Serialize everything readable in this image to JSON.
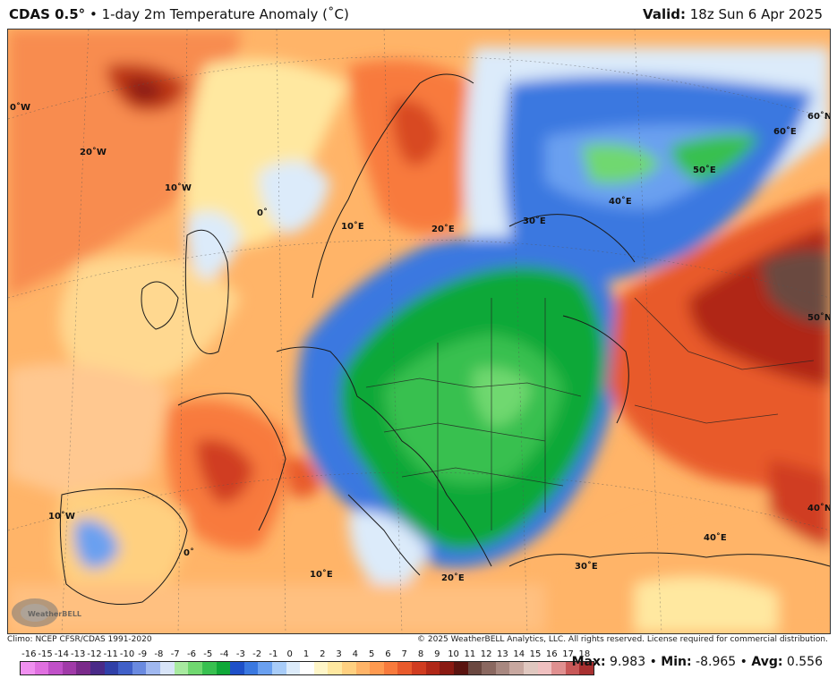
{
  "header": {
    "model": "CDAS 0.5°",
    "description": "• 1-day 2m Temperature Anomaly (˚C)",
    "valid_label": "Valid:",
    "valid_value": "18z Sun 6 Apr 2025"
  },
  "map": {
    "grid_labels": [
      "0˚W",
      "20˚W",
      "10˚W",
      "0˚",
      "10˚E",
      "20˚E",
      "30˚E",
      "40˚E",
      "50˚E",
      "60˚E",
      "60˚N",
      "50˚N",
      "40˚N",
      "10˚W",
      "0˚",
      "10˚E",
      "20˚E",
      "30˚E",
      "40˚E"
    ],
    "logo_text": "WeatherBELL"
  },
  "footer": {
    "climo": "Climo: NCEP CFSR/CDAS 1991-2020",
    "copyright": "© 2025 WeatherBELL Analytics, LLC. All rights reserved. License required for commercial distribution."
  },
  "colorbar": {
    "labels": [
      "-16",
      "-15",
      "-14",
      "-13",
      "-12",
      "-11",
      "-10",
      "-9",
      "-8",
      "-7",
      "-6",
      "-5",
      "-4",
      "-3",
      "-2",
      "-1",
      "0",
      "1",
      "2",
      "3",
      "4",
      "5",
      "6",
      "7",
      "8",
      "9",
      "10",
      "11",
      "12",
      "13",
      "14",
      "15",
      "16",
      "17",
      "18"
    ],
    "colors": [
      "#e070e0",
      "#c050c8",
      "#a03aa8",
      "#7a2a8a",
      "#5a2a80",
      "#3c2a90",
      "#2a3aa8",
      "#3a5ac8",
      "#5a7ae0",
      "#7aa0f0",
      "#a8c8f8",
      "#10a838",
      "#38c050",
      "#70d870",
      "#a8eaa0",
      "#1e50c8",
      "#3a78e0",
      "#6aa0f0",
      "#a8ccf8",
      "#dcebfa",
      "#ffffff",
      "#fff6c8",
      "#ffe8a0",
      "#ffd080",
      "#ffb468",
      "#ff9a50",
      "#f87a3c",
      "#e85a2c",
      "#d03c20",
      "#b02818",
      "#8a1a12",
      "#6a1410",
      "#7a5048",
      "#9a7068",
      "#b89088",
      "#d0b0a8",
      "#e8d0c8",
      "#f0b8b8",
      "#e08888",
      "#c85050",
      "#a83030"
    ],
    "swatch_colors": [
      "#f090f0",
      "#e070e0",
      "#c050c8",
      "#a03aa8",
      "#7a2a8a",
      "#4a2a88",
      "#3040a8",
      "#4060c8",
      "#6a8ae0",
      "#a0b8f0",
      "#d8e4f8",
      "#a8eaa0",
      "#70d870",
      "#38c050",
      "#10a838",
      "#1e50c8",
      "#3a78e0",
      "#6aa0f0",
      "#a8ccf8",
      "#dcebfa",
      "#ffffff",
      "#fff6c8",
      "#ffe8a0",
      "#ffd080",
      "#ffb468",
      "#ff9a50",
      "#f87a3c",
      "#e85a2c",
      "#d03c20",
      "#b02818",
      "#8a1a12",
      "#5a1410",
      "#6a4840",
      "#8a6860",
      "#a88880",
      "#c8a8a0",
      "#e0c8c0",
      "#f0c0c0",
      "#e09090",
      "#c85858",
      "#a83030"
    ]
  },
  "stats": {
    "max_label": "Max:",
    "max_value": "9.983",
    "min_label": "Min:",
    "min_value": "-8.965",
    "avg_label": "Avg:",
    "avg_value": "0.556"
  }
}
